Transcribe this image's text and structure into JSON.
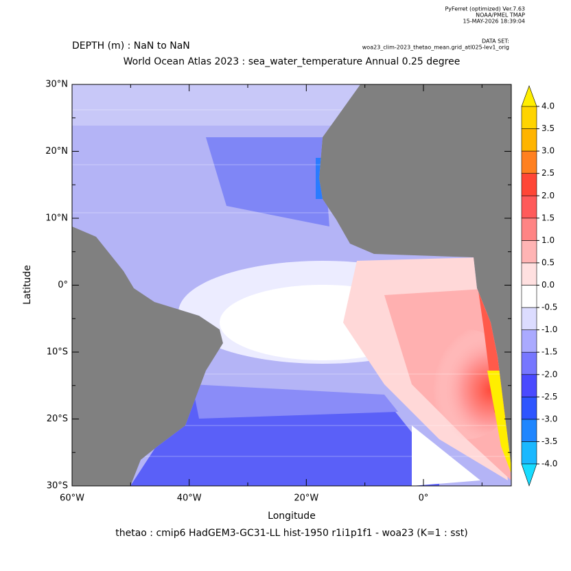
{
  "header": {
    "program": "PyFerret (optimized) Ver.7.63",
    "org": "NOAA/PMEL TMAP",
    "timestamp": "15-MAY-2026 18:39:04",
    "dataset_label": "DATA SET:",
    "dataset": "woa23_clim-2023_thetao_mean.grid_atl025-lev1_orig"
  },
  "chart_data": {
    "type": "map",
    "depth_label": "DEPTH (m) : NaN to NaN",
    "title": "World Ocean Atlas 2023 : sea_water_temperature Annual  0.25 degree",
    "x_label": "Longitude",
    "y_label": "Latitude",
    "caption": "thetao : cmip6 HadGEM3-GC31-LL hist-1950 r1i1p1f1 - woa23  (K=1 : sst)",
    "xlim": [
      -60,
      15
    ],
    "xticks": [
      {
        "value": -60,
        "label": "60°W"
      },
      {
        "value": -40,
        "label": "40°W"
      },
      {
        "value": -20,
        "label": "20°W"
      },
      {
        "value": 0,
        "label": "0°"
      }
    ],
    "xminorticks": [
      -50,
      -30,
      -10,
      10
    ],
    "ylim": [
      -30,
      30
    ],
    "yticks": [
      {
        "value": -30,
        "label": "30°S"
      },
      {
        "value": -20,
        "label": "20°S"
      },
      {
        "value": -10,
        "label": "10°S"
      },
      {
        "value": 0,
        "label": "0°"
      },
      {
        "value": 10,
        "label": "10°N"
      },
      {
        "value": 20,
        "label": "20°N"
      },
      {
        "value": 30,
        "label": "30°N"
      }
    ],
    "yminorticks": [
      -25,
      -15,
      -5,
      5,
      15,
      25
    ],
    "colorbar": {
      "levels": [
        {
          "value": -4,
          "label": "-4.0"
        },
        {
          "value": -3.5,
          "label": "-3.5"
        },
        {
          "value": -3,
          "label": "-3.0"
        },
        {
          "value": -2.5,
          "label": "-2.5"
        },
        {
          "value": -2,
          "label": "-2.0"
        },
        {
          "value": -1.5,
          "label": "-1.5"
        },
        {
          "value": -1,
          "label": "-1.0"
        },
        {
          "value": -0.5,
          "label": "-0.5"
        },
        {
          "value": 0,
          "label": "0.0"
        },
        {
          "value": 0.5,
          "label": "0.5"
        },
        {
          "value": 1,
          "label": "1.0"
        },
        {
          "value": 1.5,
          "label": "1.5"
        },
        {
          "value": 2,
          "label": "2.0"
        },
        {
          "value": 2.5,
          "label": "2.5"
        },
        {
          "value": 3,
          "label": "3.0"
        },
        {
          "value": 3.5,
          "label": "3.5"
        },
        {
          "value": 4,
          "label": "4.0"
        }
      ],
      "colors": [
        "#1ab8ff",
        "#1f86ff",
        "#2e55ff",
        "#4a4aff",
        "#7777ff",
        "#aaaaff",
        "#dcdcff",
        "#ffffff",
        "#ffe0e0",
        "#ffb4b4",
        "#ff8484",
        "#ff5a5a",
        "#ff4636",
        "#ff8020",
        "#ffb400",
        "#ffd400"
      ],
      "under_color": "#18dcff",
      "over_color": "#ffee00"
    }
  }
}
